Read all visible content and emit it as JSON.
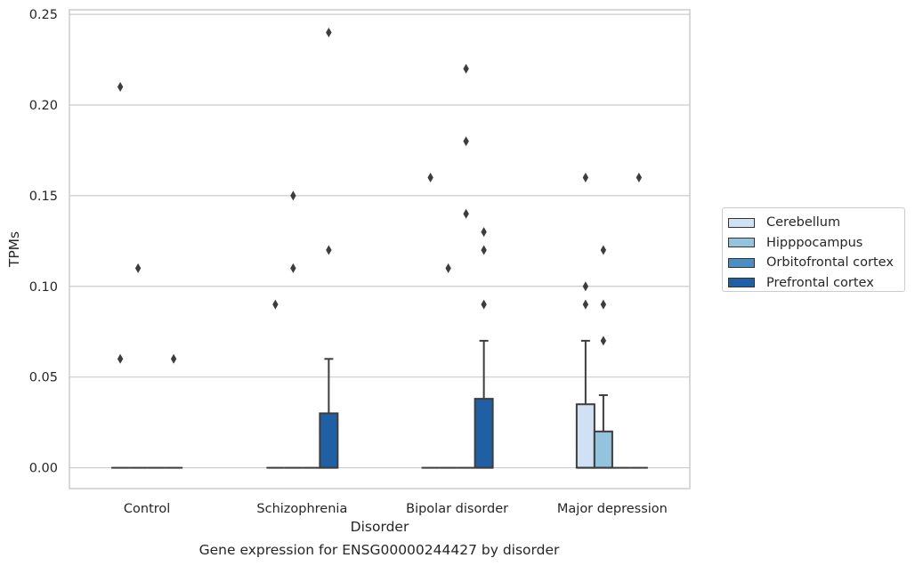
{
  "chart_data": {
    "type": "box",
    "caption": "Gene expression for ENSG00000244427 by disorder",
    "xlabel": "Disorder",
    "ylabel": "TPMs",
    "ylim": [
      -0.0115,
      0.2525
    ],
    "yticks": [
      "0.00",
      "0.05",
      "0.10",
      "0.15",
      "0.20",
      "0.25"
    ],
    "ytick_values": [
      0,
      0.05,
      0.1,
      0.15,
      0.2,
      0.25
    ],
    "grid": "horizontal",
    "legend_placement": "right",
    "categories": [
      "Control",
      "Schizophrenia",
      "Bipolar disorder",
      "Major depression"
    ],
    "series": [
      {
        "name": "Cerebellum",
        "color": "#cfe1f2",
        "boxes": [
          {
            "q1": 0,
            "median": 0,
            "q3": 0,
            "whisker_low": 0,
            "whisker_high": 0,
            "outliers": [
              0.06,
              0.21
            ]
          },
          {
            "q1": 0,
            "median": 0,
            "q3": 0,
            "whisker_low": 0,
            "whisker_high": 0,
            "outliers": [
              0.09
            ]
          },
          {
            "q1": 0,
            "median": 0,
            "q3": 0,
            "whisker_low": 0,
            "whisker_high": 0,
            "outliers": [
              0.16
            ]
          },
          {
            "q1": 0,
            "median": 0,
            "q3": 0.035,
            "whisker_low": 0,
            "whisker_high": 0.07,
            "outliers": [
              0.09,
              0.1,
              0.16
            ]
          }
        ]
      },
      {
        "name": "Hipppocampus",
        "color": "#93c4de",
        "boxes": [
          {
            "q1": 0,
            "median": 0,
            "q3": 0,
            "whisker_low": 0,
            "whisker_high": 0,
            "outliers": [
              0.11
            ]
          },
          {
            "q1": 0,
            "median": 0,
            "q3": 0,
            "whisker_low": 0,
            "whisker_high": 0,
            "outliers": [
              0.11,
              0.15
            ]
          },
          {
            "q1": 0,
            "median": 0,
            "q3": 0,
            "whisker_low": 0,
            "whisker_high": 0,
            "outliers": [
              0.11
            ]
          },
          {
            "q1": 0,
            "median": 0,
            "q3": 0.02,
            "whisker_low": 0,
            "whisker_high": 0.04,
            "outliers": [
              0.07,
              0.09,
              0.12
            ]
          }
        ]
      },
      {
        "name": "Orbitofrontal cortex",
        "color": "#4a8fc4",
        "boxes": [
          {
            "q1": 0,
            "median": 0,
            "q3": 0,
            "whisker_low": 0,
            "whisker_high": 0,
            "outliers": []
          },
          {
            "q1": 0,
            "median": 0,
            "q3": 0,
            "whisker_low": 0,
            "whisker_high": 0,
            "outliers": []
          },
          {
            "q1": 0,
            "median": 0,
            "q3": 0,
            "whisker_low": 0,
            "whisker_high": 0,
            "outliers": [
              0.14,
              0.18,
              0.22
            ]
          },
          {
            "q1": 0,
            "median": 0,
            "q3": 0,
            "whisker_low": 0,
            "whisker_high": 0,
            "outliers": []
          }
        ]
      },
      {
        "name": "Prefrontal cortex",
        "color": "#1f5fa3",
        "boxes": [
          {
            "q1": 0,
            "median": 0,
            "q3": 0,
            "whisker_low": 0,
            "whisker_high": 0,
            "outliers": [
              0.06
            ]
          },
          {
            "q1": 0,
            "median": 0,
            "q3": 0.03,
            "whisker_low": 0,
            "whisker_high": 0.06,
            "outliers": [
              0.12,
              0.24
            ]
          },
          {
            "q1": 0,
            "median": 0,
            "q3": 0.038,
            "whisker_low": 0,
            "whisker_high": 0.07,
            "outliers": [
              0.09,
              0.12,
              0.13
            ]
          },
          {
            "q1": 0,
            "median": 0,
            "q3": 0,
            "whisker_low": 0,
            "whisker_high": 0,
            "outliers": [
              0.16
            ]
          }
        ]
      }
    ]
  }
}
